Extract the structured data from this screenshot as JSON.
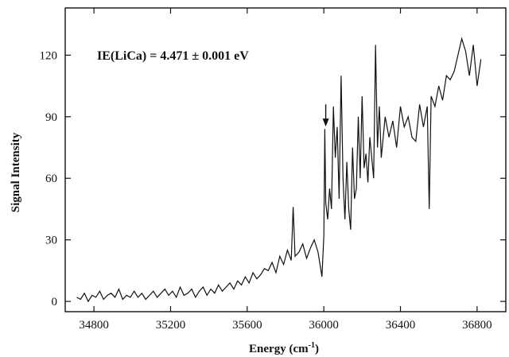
{
  "chart_data": {
    "type": "line",
    "title": "",
    "xlabel": "Energy (cm",
    "xlabel_sup": "-1",
    "xlabel_close": ")",
    "ylabel": "Signal Intensity",
    "xlim": [
      34650,
      36950
    ],
    "ylim": [
      -5,
      143
    ],
    "x_ticks": [
      34800,
      35200,
      35600,
      36000,
      36400,
      36800
    ],
    "x_tick_labels": [
      "34800",
      "35200",
      "35600",
      "36000",
      "36400",
      "36800"
    ],
    "y_ticks": [
      0,
      30,
      60,
      90,
      120
    ],
    "y_tick_labels": [
      "0",
      "30",
      "60",
      "90",
      "120"
    ],
    "grid": false,
    "annotation": "IE(LiCa) = 4.471 ± 0.001 eV",
    "arrow_marker": {
      "x": 36010,
      "y_top": 96,
      "y_bottom": 86
    },
    "series": [
      {
        "values_x": [
          34710,
          34730,
          34750,
          34770,
          34790,
          34810,
          34830,
          34850,
          34870,
          34890,
          34910,
          34930,
          34950,
          34970,
          34990,
          35010,
          35030,
          35050,
          35070,
          35090,
          35110,
          35130,
          35150,
          35170,
          35190,
          35210,
          35230,
          35250,
          35270,
          35290,
          35310,
          35330,
          35350,
          35370,
          35390,
          35410,
          35430,
          35450,
          35470,
          35490,
          35510,
          35530,
          35550,
          35570,
          35590,
          35610,
          35630,
          35650,
          35670,
          35690,
          35710,
          35730,
          35750,
          35770,
          35790,
          35810,
          35830,
          35840,
          35850,
          35870,
          35890,
          35910,
          35930,
          35950,
          35970,
          35990,
          36000,
          36005,
          36010,
          36020,
          36030,
          36040,
          36050,
          36060,
          36070,
          36080,
          36090,
          36100,
          36110,
          36120,
          36130,
          36140,
          36150,
          36160,
          36170,
          36180,
          36190,
          36200,
          36210,
          36220,
          36230,
          36240,
          36250,
          36260,
          36270,
          36280,
          36290,
          36300,
          36320,
          36340,
          36360,
          36380,
          36400,
          36420,
          36440,
          36460,
          36480,
          36500,
          36520,
          36540,
          36550,
          36560,
          36580,
          36600,
          36620,
          36640,
          36660,
          36680,
          36700,
          36720,
          36740,
          36760,
          36780,
          36800,
          36820
        ],
        "values_y": [
          2,
          1,
          4,
          0,
          3,
          2,
          5,
          1,
          3,
          4,
          2,
          6,
          1,
          3,
          2,
          5,
          2,
          4,
          1,
          3,
          5,
          2,
          4,
          6,
          3,
          5,
          2,
          7,
          3,
          4,
          6,
          2,
          5,
          7,
          3,
          6,
          4,
          8,
          5,
          7,
          9,
          6,
          10,
          8,
          12,
          9,
          14,
          11,
          13,
          16,
          15,
          19,
          14,
          22,
          18,
          25,
          20,
          46,
          22,
          24,
          28,
          21,
          26,
          30,
          24,
          12,
          32,
          84,
          48,
          40,
          55,
          45,
          95,
          70,
          85,
          50,
          110,
          60,
          40,
          68,
          45,
          35,
          75,
          50,
          55,
          90,
          60,
          100,
          65,
          72,
          58,
          80,
          70,
          60,
          125,
          75,
          95,
          70,
          90,
          80,
          88,
          75,
          95,
          85,
          90,
          80,
          78,
          96,
          85,
          95,
          45,
          100,
          95,
          105,
          98,
          110,
          108,
          112,
          120,
          128,
          122,
          110,
          125,
          105,
          118
        ],
        "note": "approximate noisy trace"
      }
    ]
  }
}
